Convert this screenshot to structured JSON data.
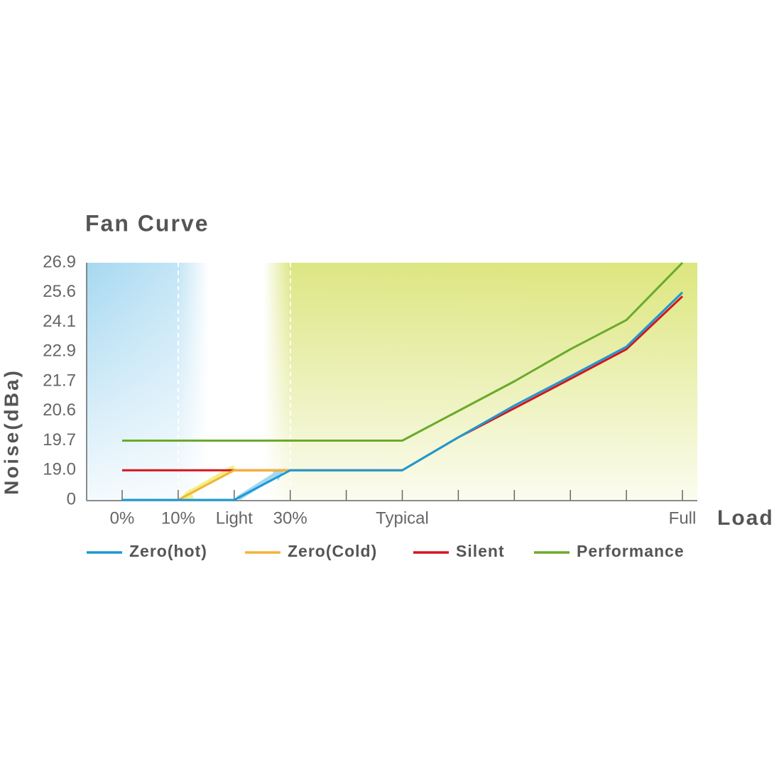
{
  "chart_data": {
    "type": "line",
    "title": "Fan Curve",
    "x_label": "Load",
    "y_label": "Noise(dBa)",
    "categories": [
      "0%",
      "10%",
      "Light",
      "30%",
      null,
      "Typical",
      null,
      null,
      null,
      null,
      "Full"
    ],
    "series": [
      {
        "name": "Zero(hot)",
        "color": "#1a9ad6",
        "values": [
          0,
          0,
          0,
          19,
          19,
          19,
          19.8,
          20.8,
          21.9,
          23.1,
          25.6
        ]
      },
      {
        "name": "Zero(Cold)",
        "color": "#f3b435",
        "values": [
          0,
          0,
          19,
          19,
          19,
          19,
          19.8,
          20.8,
          21.9,
          23.1,
          25.6
        ]
      },
      {
        "name": "Silent",
        "color": "#d7131f",
        "values": [
          19,
          19,
          19,
          19,
          19,
          19,
          19.8,
          20.7,
          21.8,
          23.0,
          25.4
        ]
      },
      {
        "name": "Performance",
        "color": "#6aaa2a",
        "values": [
          19.7,
          19.7,
          19.7,
          19.7,
          19.7,
          19.7,
          20.6,
          21.7,
          23.0,
          24.2,
          26.9
        ]
      }
    ],
    "ylim": [
      0,
      26.9
    ],
    "yticks": [
      0,
      {
        "value": 19,
        "label": "19.0"
      },
      19.7,
      20.6,
      21.7,
      22.9,
      24.1,
      25.6,
      26.9
    ],
    "legend": "bottom"
  }
}
